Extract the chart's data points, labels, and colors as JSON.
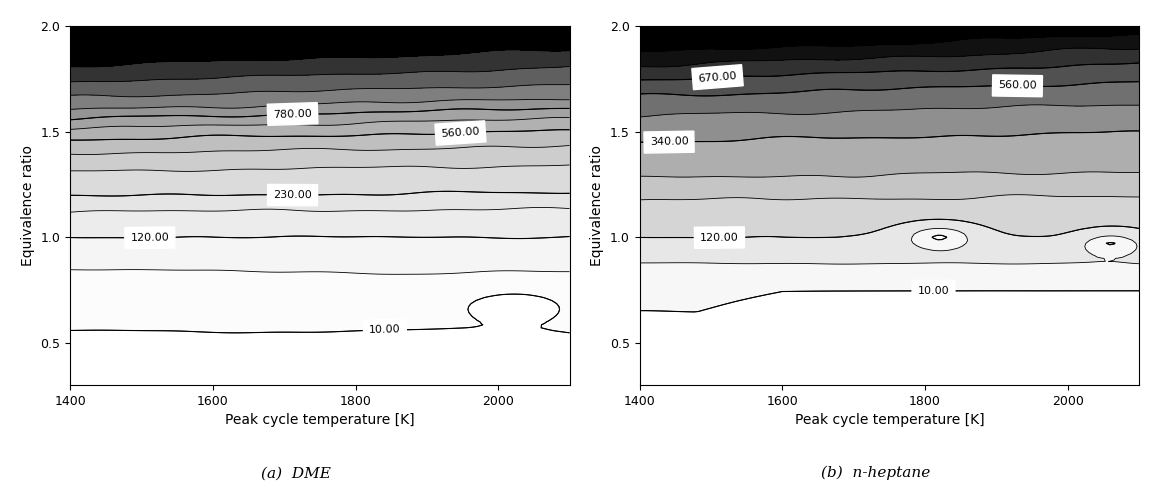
{
  "title_a": "(a)  DME",
  "title_b": "(b)  n-heptane",
  "xlabel": "Peak cycle temperature [K]",
  "ylabel": "Equivalence ratio",
  "xlim": [
    1400,
    2100
  ],
  "ylim": [
    0.3,
    2.0
  ],
  "xticks": [
    1400,
    1600,
    1800,
    2000
  ],
  "yticks": [
    0.5,
    1.0,
    1.5,
    2.0
  ],
  "levels_dme": [
    10,
    50,
    120,
    180,
    230,
    340,
    450,
    560,
    670,
    780,
    900,
    1100,
    1400,
    1800
  ],
  "levels_hep": [
    10,
    50,
    120,
    180,
    230,
    340,
    450,
    560,
    670,
    780,
    900,
    1100
  ],
  "clabel_dme": [
    10,
    120,
    230,
    560,
    780
  ],
  "clabel_hep": [
    10,
    120,
    340,
    560,
    670
  ],
  "cmap": "gray_r",
  "figsize": [
    11.6,
    4.82
  ],
  "dpi": 100,
  "vmax_dme": 2000,
  "vmax_hep": 900
}
